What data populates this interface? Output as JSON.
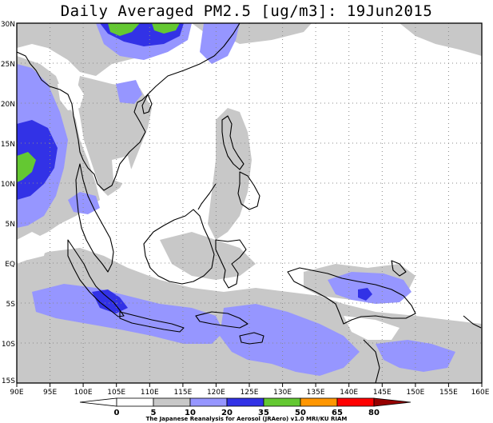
{
  "title": "Daily Averaged PM2.5 [ug/m3]: 19Jun2015",
  "credit": "The Japanese Reanalysis for Aerosol (JRAero) v1.0 MRI/KU RIAM",
  "map": {
    "lon_range": [
      90,
      160
    ],
    "lat_range": [
      -15,
      30
    ],
    "lon_ticks": [
      "90E",
      "95E",
      "100E",
      "105E",
      "110E",
      "115E",
      "120E",
      "125E",
      "130E",
      "135E",
      "140E",
      "145E",
      "150E",
      "155E",
      "160E"
    ],
    "lat_ticks": [
      "30N",
      "25N",
      "20N",
      "15N",
      "10N",
      "5N",
      "EQ",
      "5S",
      "10S",
      "15S"
    ]
  },
  "colorbar": {
    "levels": [
      "0",
      "5",
      "10",
      "20",
      "35",
      "50",
      "65",
      "80"
    ],
    "colors": [
      "#ffffff",
      "#ffffff",
      "#c8c8c8",
      "#9696ff",
      "#3232e6",
      "#64c832",
      "#ff9600",
      "#ff0000",
      "#960000"
    ]
  }
}
